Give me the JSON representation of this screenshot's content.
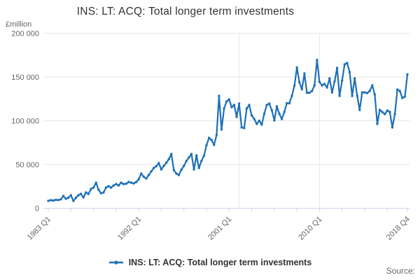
{
  "title": "INS: LT: ACQ: Total longer term investments",
  "y_axis_unit_label": "£million",
  "source_label": "Source:",
  "legend": {
    "label": "INS: LT: ACQ: Total longer term investments",
    "marker_color": "#1d70b8"
  },
  "chart_data": {
    "type": "line",
    "title": "INS: LT: ACQ: Total longer term investments",
    "ylabel": "£million",
    "frequency": "quarterly",
    "x_start": "1983 Q1",
    "x_end": "2018 Q4",
    "x_tick_labels": [
      "1983 Q1",
      "1992 Q1",
      "2001 Q1",
      "2010 Q1",
      "2018 Q4"
    ],
    "x_tick_positions_quarter_index": [
      0,
      36,
      72,
      108,
      143
    ],
    "minor_tick_every_quarters": 9,
    "last_tick_quarter_index": 143,
    "ylim": [
      0,
      200000
    ],
    "y_ticks": [
      0,
      50000,
      100000,
      150000,
      200000
    ],
    "y_tick_labels": [
      "0",
      "50 000",
      "100 000",
      "150 000",
      "200 000"
    ],
    "grid_color": "#e6e6e6",
    "axis_color": "#ccd6eb",
    "vertical_gridlines_quarter_index": [
      76,
      108
    ],
    "legend_position": "bottom",
    "series": [
      {
        "name": "INS: LT: ACQ: Total longer term investments",
        "color": "#1d70b8",
        "values": [
          8500,
          9200,
          8800,
          9600,
          9400,
          10200,
          14000,
          10800,
          12000,
          14800,
          8400,
          12000,
          14800,
          16400,
          12400,
          18000,
          16400,
          22000,
          23600,
          29200,
          21200,
          17200,
          18000,
          23600,
          25200,
          23600,
          26000,
          27600,
          26000,
          29200,
          27600,
          28000,
          30000,
          29200,
          28400,
          30000,
          33000,
          39600,
          36000,
          34000,
          38000,
          42000,
          46000,
          48000,
          51600,
          44400,
          48400,
          52000,
          56000,
          62000,
          43600,
          39600,
          38000,
          44000,
          48400,
          54000,
          58000,
          62000,
          44400,
          60400,
          46000,
          54000,
          60000,
          72000,
          80400,
          78000,
          72400,
          83600,
          128400,
          90000,
          114000,
          122000,
          124400,
          115600,
          118000,
          104400,
          119600,
          92400,
          91600,
          114000,
          118000,
          106000,
          102000,
          96400,
          100000,
          95600,
          108000,
          118000,
          119600,
          112000,
          100400,
          116400,
          108000,
          102000,
          110000,
          120000,
          120000,
          128400,
          140000,
          161000,
          144000,
          136000,
          154000,
          132000,
          132000,
          134000,
          140400,
          169500,
          144400,
          140400,
          142000,
          138000,
          148400,
          132400,
          145000,
          160400,
          128400,
          146000,
          164400,
          166000,
          155600,
          128400,
          148400,
          128400,
          112400,
          132400,
          132400,
          131600,
          134000,
          140400,
          130000,
          96400,
          112400,
          110000,
          107600,
          111600,
          110000,
          92400,
          107600,
          135600,
          134000,
          126000,
          127600,
          153000
        ]
      }
    ]
  }
}
